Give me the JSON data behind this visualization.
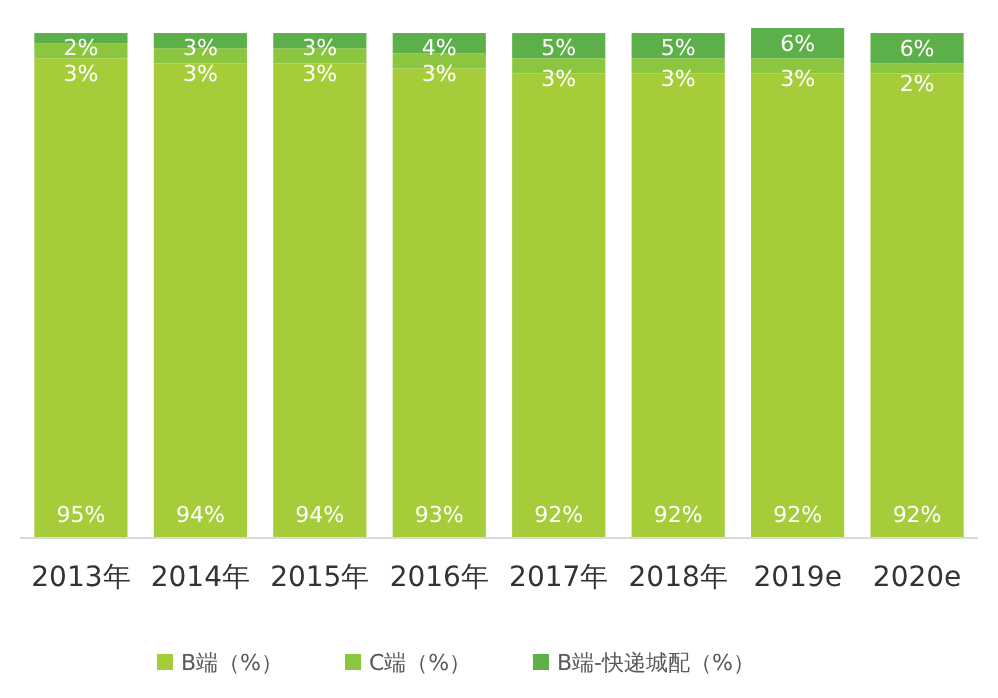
{
  "chart_data": {
    "type": "bar",
    "stacked": true,
    "legend": "bottom",
    "categories": [
      "2013年",
      "2014年",
      "2015年",
      "2016年",
      "2017年",
      "2018年",
      "2019e",
      "2020e"
    ],
    "series": [
      {
        "name": "B端（%）",
        "color": "#a5cd39",
        "values": [
          95,
          94,
          94,
          93,
          92,
          92,
          92,
          92
        ],
        "value_labels": [
          "95%",
          "94%",
          "94%",
          "93%",
          "92%",
          "92%",
          "92%",
          "92%"
        ]
      },
      {
        "name": "C端（%）",
        "color": "#8cc63f",
        "values": [
          3,
          3,
          3,
          3,
          3,
          3,
          3,
          2
        ],
        "value_labels": [
          "3%",
          "3%",
          "3%",
          "3%",
          "3%",
          "3%",
          "3%",
          "2%"
        ]
      },
      {
        "name": "B端-快递城配（%）",
        "color": "#5daf4a",
        "values": [
          2,
          3,
          3,
          4,
          5,
          5,
          6,
          6
        ],
        "value_labels": [
          "2%",
          "3%",
          "3%",
          "4%",
          "5%",
          "5%",
          "6%",
          "6%"
        ]
      }
    ]
  }
}
